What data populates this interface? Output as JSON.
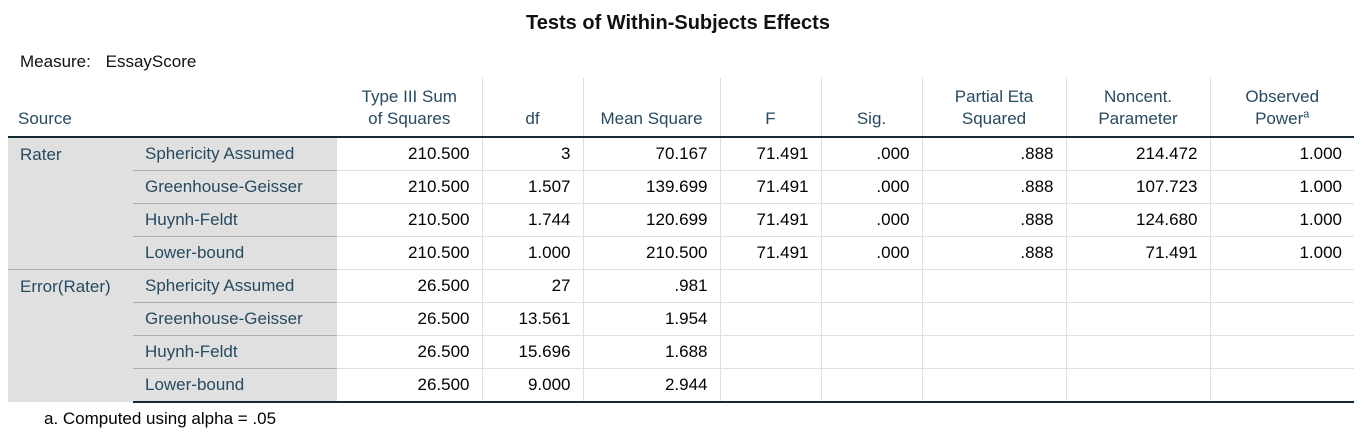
{
  "title": "Tests of Within-Subjects Effects",
  "measure": {
    "label": "Measure:",
    "value": "EssayScore"
  },
  "columns": {
    "source": "Source",
    "ss_line1": "Type III Sum",
    "ss_line2": "of Squares",
    "df": "df",
    "ms": "Mean Square",
    "f": "F",
    "sig": "Sig.",
    "eta_line1": "Partial Eta",
    "eta_line2": "Squared",
    "nc_line1": "Noncent.",
    "nc_line2": "Parameter",
    "power_line1": "Observed",
    "power_line2": "Power",
    "power_sup": "a"
  },
  "groups": [
    {
      "source": "Rater",
      "rows": [
        {
          "sub": "Sphericity Assumed",
          "ss": "210.500",
          "df": "3",
          "ms": "70.167",
          "f": "71.491",
          "sig": ".000",
          "eta": ".888",
          "nc": "214.472",
          "power": "1.000"
        },
        {
          "sub": "Greenhouse-Geisser",
          "ss": "210.500",
          "df": "1.507",
          "ms": "139.699",
          "f": "71.491",
          "sig": ".000",
          "eta": ".888",
          "nc": "107.723",
          "power": "1.000"
        },
        {
          "sub": "Huynh-Feldt",
          "ss": "210.500",
          "df": "1.744",
          "ms": "120.699",
          "f": "71.491",
          "sig": ".000",
          "eta": ".888",
          "nc": "124.680",
          "power": "1.000"
        },
        {
          "sub": "Lower-bound",
          "ss": "210.500",
          "df": "1.000",
          "ms": "210.500",
          "f": "71.491",
          "sig": ".000",
          "eta": ".888",
          "nc": "71.491",
          "power": "1.000"
        }
      ]
    },
    {
      "source": "Error(Rater)",
      "rows": [
        {
          "sub": "Sphericity Assumed",
          "ss": "26.500",
          "df": "27",
          "ms": ".981",
          "f": "",
          "sig": "",
          "eta": "",
          "nc": "",
          "power": ""
        },
        {
          "sub": "Greenhouse-Geisser",
          "ss": "26.500",
          "df": "13.561",
          "ms": "1.954",
          "f": "",
          "sig": "",
          "eta": "",
          "nc": "",
          "power": ""
        },
        {
          "sub": "Huynh-Feldt",
          "ss": "26.500",
          "df": "15.696",
          "ms": "1.688",
          "f": "",
          "sig": "",
          "eta": "",
          "nc": "",
          "power": ""
        },
        {
          "sub": "Lower-bound",
          "ss": "26.500",
          "df": "9.000",
          "ms": "2.944",
          "f": "",
          "sig": "",
          "eta": "",
          "nc": "",
          "power": ""
        }
      ]
    }
  ],
  "footnote": "a. Computed using alpha = .05",
  "colors": {
    "label_text": "#264a60",
    "label_background": "#e0e0e0",
    "rule": "#152935",
    "grid": "#e0e0e0"
  }
}
